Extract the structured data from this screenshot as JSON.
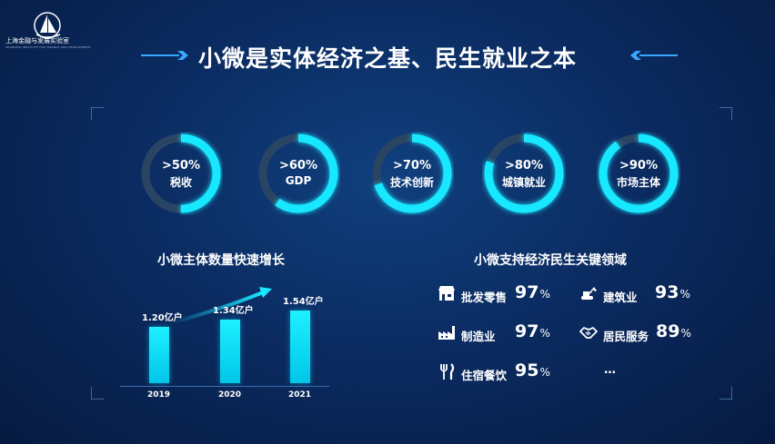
{
  "logo": {
    "name": "上海金融与发展实验室",
    "subtitle": "SHANGHAI INSTITUTE FOR FINANCE AND DEVELOPMENT"
  },
  "title": "小微是实体经济之基、民生就业之本",
  "donuts": [
    {
      "value": ">50%",
      "label": "税收",
      "fraction": 0.5
    },
    {
      "value": ">60%",
      "label": "GDP",
      "fraction": 0.6
    },
    {
      "value": ">70%",
      "label": "技术创新",
      "fraction": 0.7
    },
    {
      "value": ">80%",
      "label": "城镇就业",
      "fraction": 0.8
    },
    {
      "value": ">90%",
      "label": "市场主体",
      "fraction": 0.9
    }
  ],
  "growth": {
    "title": "小微主体数量快速增长",
    "bars": [
      {
        "year": "2019",
        "value_label": "1.20亿户",
        "value": 1.2
      },
      {
        "year": "2020",
        "value_label": "1.34亿户",
        "value": 1.34
      },
      {
        "year": "2021",
        "value_label": "1.54亿户",
        "value": 1.54
      }
    ]
  },
  "chart_data": {
    "type": "bar",
    "categories": [
      "2019",
      "2020",
      "2021"
    ],
    "values": [
      1.2,
      1.34,
      1.54
    ],
    "title": "小微主体数量快速增长",
    "xlabel": "",
    "ylabel": ""
  },
  "industries": {
    "title": "小微支持经济民生关键领域",
    "items": [
      {
        "label": "批发零售",
        "pct": "97",
        "icon": "store-icon"
      },
      {
        "label": "建筑业",
        "pct": "93",
        "icon": "excavator-icon"
      },
      {
        "label": "制造业",
        "pct": "97",
        "icon": "factory-icon"
      },
      {
        "label": "居民服务",
        "pct": "89",
        "icon": "handshake-icon"
      },
      {
        "label": "住宿餐饮",
        "pct": "95",
        "icon": "utensils-icon"
      }
    ],
    "percent_sign": "%",
    "ellipsis": "…"
  },
  "colors": {
    "accent": "#18e8ff",
    "ring_track": "#2a4563",
    "bar": "#15e0f5"
  }
}
